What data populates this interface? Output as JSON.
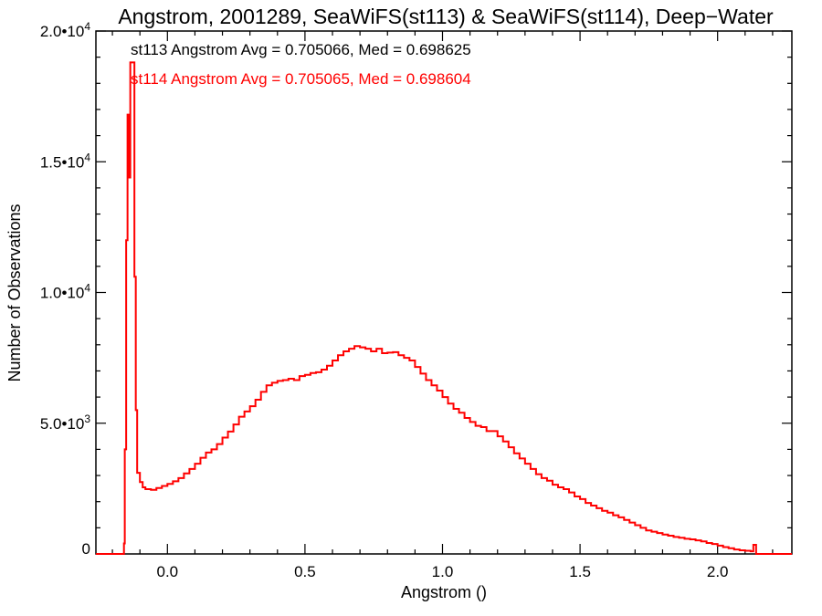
{
  "chart_data": {
    "type": "line",
    "title": "Angstrom, 2001289, SeaWiFS(st113) & SeaWiFS(st114), Deep−Water",
    "xlabel": "Angstrom ()",
    "ylabel": "Number of Observations",
    "xlim": [
      -0.26,
      2.27
    ],
    "ylim": [
      0,
      20000
    ],
    "grid": false,
    "legend": "none",
    "x_ticks": [
      {
        "value": 0.0,
        "label": "0.0"
      },
      {
        "value": 0.5,
        "label": "0.5"
      },
      {
        "value": 1.0,
        "label": "1.0"
      },
      {
        "value": 1.5,
        "label": "1.5"
      },
      {
        "value": 2.0,
        "label": "2.0"
      }
    ],
    "y_ticks": [
      {
        "value": 0,
        "mant": "0",
        "exp": ""
      },
      {
        "value": 5000,
        "mant": "5.0•10",
        "exp": "3"
      },
      {
        "value": 10000,
        "mant": "1.0•10",
        "exp": "4"
      },
      {
        "value": 15000,
        "mant": "1.5•10",
        "exp": "4"
      },
      {
        "value": 20000,
        "mant": "2.0•10",
        "exp": "4"
      }
    ],
    "annotations": [
      {
        "text": "st113 Angstrom Avg = 0.705066, Med = 0.698625",
        "color": "#000000"
      },
      {
        "text": "st114 Angstrom Avg = 0.705065, Med = 0.698604",
        "color": "#ff0000"
      }
    ],
    "series": [
      {
        "color": "#ff0000",
        "points": [
          [
            -0.26,
            0
          ],
          [
            -0.16,
            0
          ],
          [
            -0.158,
            400
          ],
          [
            -0.155,
            4000
          ],
          [
            -0.15,
            12000
          ],
          [
            -0.145,
            16800
          ],
          [
            -0.14,
            14400
          ],
          [
            -0.135,
            18800
          ],
          [
            -0.125,
            18800
          ],
          [
            -0.12,
            10600
          ],
          [
            -0.115,
            5500
          ],
          [
            -0.11,
            3100
          ],
          [
            -0.1,
            2750
          ],
          [
            -0.09,
            2550
          ],
          [
            -0.08,
            2480
          ],
          [
            -0.06,
            2450
          ],
          [
            -0.04,
            2520
          ],
          [
            -0.02,
            2600
          ],
          [
            0.0,
            2680
          ],
          [
            0.02,
            2780
          ],
          [
            0.04,
            2900
          ],
          [
            0.06,
            3080
          ],
          [
            0.08,
            3250
          ],
          [
            0.1,
            3450
          ],
          [
            0.12,
            3680
          ],
          [
            0.14,
            3880
          ],
          [
            0.16,
            4000
          ],
          [
            0.18,
            4200
          ],
          [
            0.2,
            4450
          ],
          [
            0.22,
            4680
          ],
          [
            0.24,
            4950
          ],
          [
            0.26,
            5250
          ],
          [
            0.28,
            5450
          ],
          [
            0.3,
            5650
          ],
          [
            0.32,
            5900
          ],
          [
            0.34,
            6200
          ],
          [
            0.36,
            6450
          ],
          [
            0.38,
            6550
          ],
          [
            0.4,
            6620
          ],
          [
            0.42,
            6650
          ],
          [
            0.44,
            6700
          ],
          [
            0.46,
            6650
          ],
          [
            0.48,
            6800
          ],
          [
            0.5,
            6850
          ],
          [
            0.52,
            6920
          ],
          [
            0.54,
            6950
          ],
          [
            0.56,
            7050
          ],
          [
            0.58,
            7200
          ],
          [
            0.6,
            7400
          ],
          [
            0.62,
            7600
          ],
          [
            0.64,
            7750
          ],
          [
            0.66,
            7850
          ],
          [
            0.68,
            7950
          ],
          [
            0.7,
            7900
          ],
          [
            0.72,
            7850
          ],
          [
            0.74,
            7750
          ],
          [
            0.76,
            7850
          ],
          [
            0.78,
            7680
          ],
          [
            0.8,
            7700
          ],
          [
            0.82,
            7720
          ],
          [
            0.84,
            7600
          ],
          [
            0.86,
            7500
          ],
          [
            0.88,
            7400
          ],
          [
            0.9,
            7150
          ],
          [
            0.92,
            6900
          ],
          [
            0.94,
            6650
          ],
          [
            0.96,
            6450
          ],
          [
            0.98,
            6250
          ],
          [
            1.0,
            6000
          ],
          [
            1.02,
            5750
          ],
          [
            1.04,
            5550
          ],
          [
            1.06,
            5400
          ],
          [
            1.08,
            5200
          ],
          [
            1.1,
            5050
          ],
          [
            1.12,
            4900
          ],
          [
            1.14,
            4850
          ],
          [
            1.16,
            4700
          ],
          [
            1.2,
            4500
          ],
          [
            1.22,
            4300
          ],
          [
            1.24,
            4080
          ],
          [
            1.26,
            3850
          ],
          [
            1.28,
            3650
          ],
          [
            1.3,
            3450
          ],
          [
            1.32,
            3250
          ],
          [
            1.34,
            3050
          ],
          [
            1.36,
            2900
          ],
          [
            1.38,
            2800
          ],
          [
            1.4,
            2650
          ],
          [
            1.42,
            2550
          ],
          [
            1.44,
            2480
          ],
          [
            1.46,
            2350
          ],
          [
            1.48,
            2200
          ],
          [
            1.5,
            2100
          ],
          [
            1.52,
            1950
          ],
          [
            1.54,
            1850
          ],
          [
            1.56,
            1750
          ],
          [
            1.58,
            1650
          ],
          [
            1.6,
            1580
          ],
          [
            1.62,
            1480
          ],
          [
            1.64,
            1400
          ],
          [
            1.66,
            1300
          ],
          [
            1.68,
            1200
          ],
          [
            1.7,
            1100
          ],
          [
            1.72,
            1000
          ],
          [
            1.74,
            900
          ],
          [
            1.76,
            850
          ],
          [
            1.78,
            800
          ],
          [
            1.8,
            740
          ],
          [
            1.82,
            700
          ],
          [
            1.84,
            650
          ],
          [
            1.86,
            620
          ],
          [
            1.88,
            580
          ],
          [
            1.9,
            560
          ],
          [
            1.92,
            520
          ],
          [
            1.94,
            480
          ],
          [
            1.96,
            420
          ],
          [
            1.98,
            380
          ],
          [
            2.0,
            320
          ],
          [
            2.02,
            260
          ],
          [
            2.04,
            220
          ],
          [
            2.06,
            170
          ],
          [
            2.08,
            140
          ],
          [
            2.1,
            120
          ],
          [
            2.12,
            100
          ],
          [
            2.13,
            350
          ],
          [
            2.14,
            0
          ],
          [
            2.27,
            0
          ]
        ]
      }
    ]
  }
}
